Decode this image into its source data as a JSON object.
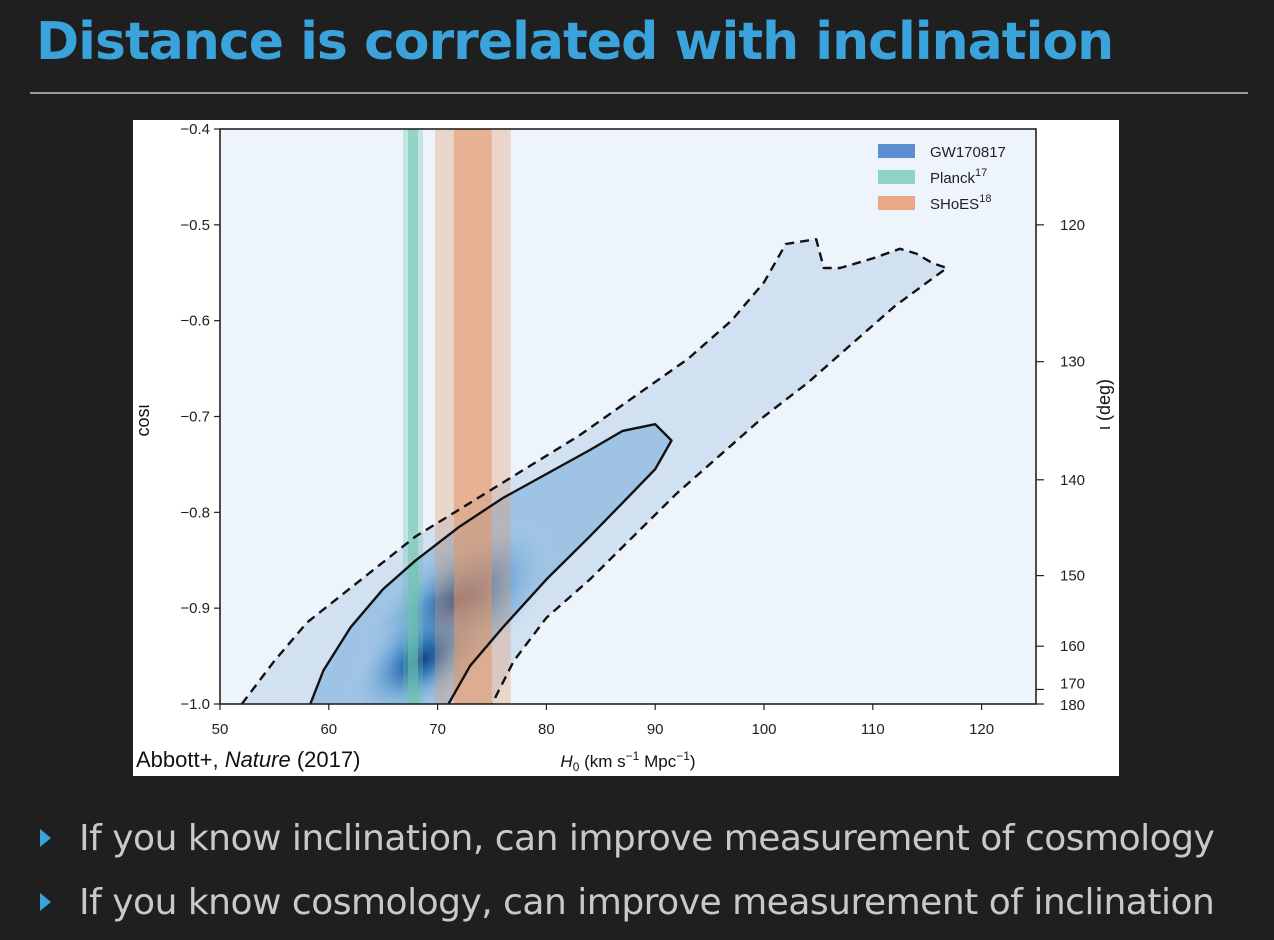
{
  "slide": {
    "title": "Distance is correlated with inclination",
    "bullets": [
      "If you know inclination, can improve measurement of cosmology",
      "If you know cosmology, can improve measurement of inclination"
    ]
  },
  "chart_data": {
    "type": "heatmap",
    "title": "",
    "credit": {
      "prefix": "Abbott+, ",
      "journal": "Nature",
      "year": " (2017)"
    },
    "xlabel": {
      "main": "H",
      "sub": "0",
      "units_pre": " (km s",
      "exp1": "−1",
      "units_mid": " Mpc",
      "exp2": "−1",
      "units_post": ")"
    },
    "ylabel": "cosι",
    "y2label": "ι (deg)",
    "xlim": [
      50,
      125
    ],
    "ylim": [
      -1.0,
      -0.4
    ],
    "xticks": [
      50,
      60,
      70,
      80,
      90,
      100,
      110,
      120
    ],
    "yticks": [
      -0.4,
      -0.5,
      -0.6,
      -0.7,
      -0.8,
      -0.9,
      -1.0
    ],
    "yticklabels": [
      "−0.4",
      "−0.5",
      "−0.6",
      "−0.7",
      "−0.8",
      "−0.9",
      "−1.0"
    ],
    "y2ticks": [
      120,
      130,
      140,
      150,
      160,
      170,
      180
    ],
    "legend": {
      "placement": "top-right",
      "entries": [
        {
          "label": "GW170817",
          "sup": "",
          "color": "#5b8fcf"
        },
        {
          "label": "Planck",
          "sup": "17",
          "color": "#8fd3c2"
        },
        {
          "label": "SHoES",
          "sup": "18",
          "color": "#eaa886"
        }
      ]
    },
    "bands": [
      {
        "name": "Planck",
        "center": 67.74,
        "inner_sigma": 0.46,
        "outer_sigma": 0.92,
        "color": "#6cc5ac"
      },
      {
        "name": "SHoES",
        "center": 73.24,
        "inner_sigma": 1.74,
        "outer_sigma": 3.48,
        "color": "#e49566"
      }
    ],
    "density_peak": {
      "x": 68,
      "y": -0.97
    },
    "contours": [
      {
        "level": "68%",
        "style": "solid",
        "points": [
          [
            58.3,
            -1.0
          ],
          [
            59.5,
            -0.965
          ],
          [
            62,
            -0.92
          ],
          [
            65,
            -0.88
          ],
          [
            68,
            -0.85
          ],
          [
            72,
            -0.815
          ],
          [
            76,
            -0.785
          ],
          [
            80,
            -0.76
          ],
          [
            84,
            -0.735
          ],
          [
            87,
            -0.715
          ],
          [
            90,
            -0.708
          ],
          [
            91.5,
            -0.725
          ],
          [
            90,
            -0.755
          ],
          [
            87,
            -0.79
          ],
          [
            84,
            -0.825
          ],
          [
            80,
            -0.87
          ],
          [
            76,
            -0.92
          ],
          [
            73,
            -0.96
          ],
          [
            71,
            -1.0
          ]
        ]
      },
      {
        "level": "90%",
        "style": "dashed",
        "points": [
          [
            52,
            -1.0
          ],
          [
            55,
            -0.955
          ],
          [
            58,
            -0.915
          ],
          [
            63,
            -0.87
          ],
          [
            68,
            -0.825
          ],
          [
            73,
            -0.79
          ],
          [
            78,
            -0.755
          ],
          [
            83,
            -0.72
          ],
          [
            88,
            -0.68
          ],
          [
            93,
            -0.64
          ],
          [
            97,
            -0.6
          ],
          [
            100,
            -0.56
          ],
          [
            102,
            -0.52
          ],
          [
            104.8,
            -0.515
          ],
          [
            105.5,
            -0.545
          ],
          [
            107,
            -0.545
          ],
          [
            110,
            -0.535
          ],
          [
            112.5,
            -0.525
          ],
          [
            114,
            -0.53
          ],
          [
            115.5,
            -0.54
          ],
          [
            116.8,
            -0.545
          ],
          [
            115,
            -0.56
          ],
          [
            112,
            -0.585
          ],
          [
            108,
            -0.625
          ],
          [
            104,
            -0.665
          ],
          [
            100,
            -0.7
          ],
          [
            96,
            -0.74
          ],
          [
            92,
            -0.78
          ],
          [
            88,
            -0.825
          ],
          [
            84,
            -0.87
          ],
          [
            80,
            -0.91
          ],
          [
            77,
            -0.955
          ],
          [
            75,
            -1.0
          ]
        ]
      }
    ]
  }
}
